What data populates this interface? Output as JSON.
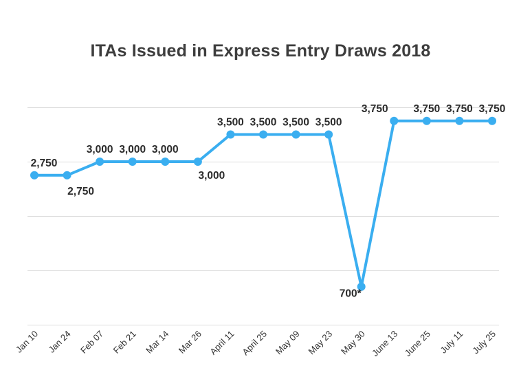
{
  "chart_data": {
    "type": "line",
    "title": "ITAs Issued in Express Entry Draws 2018",
    "categories": [
      "Jan 10",
      "Jan 24",
      "Feb 07",
      "Feb 21",
      "Mar 14",
      "Mar 26",
      "April 11",
      "April 25",
      "May 09",
      "May 23",
      "May 30",
      "June 13",
      "June 25",
      "July 11",
      "July 25"
    ],
    "values": [
      2750,
      2750,
      3000,
      3000,
      3000,
      3000,
      3500,
      3500,
      3500,
      3500,
      700,
      3750,
      3750,
      3750,
      3750
    ],
    "data_labels": [
      "2,750",
      "2,750",
      "3,000",
      "3,000",
      "3,000",
      "3,000",
      "3,500",
      "3,500",
      "3,500",
      "3,500",
      "700*",
      "3,750",
      "3,750",
      "3,750",
      "3,750"
    ],
    "ylim": [
      0,
      4000
    ],
    "grid": true,
    "legend": "none",
    "line_color": "#3aaef0"
  }
}
